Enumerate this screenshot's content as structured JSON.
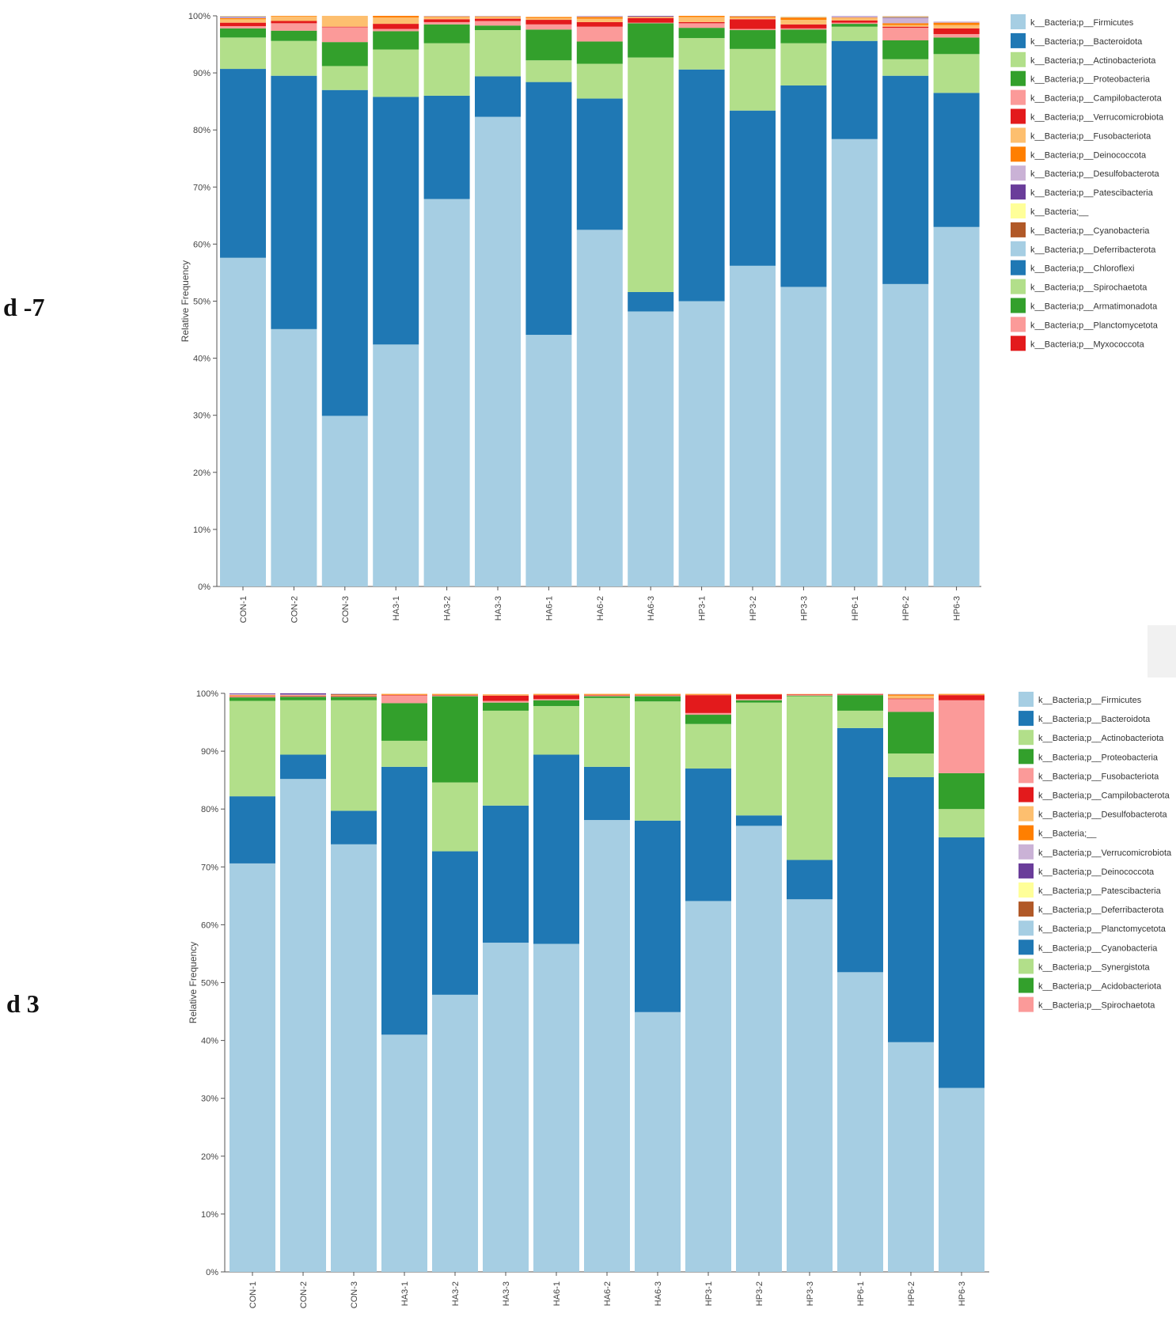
{
  "panels": {
    "top_label": "d -7",
    "bottom_label": "d 3"
  },
  "chart_data": [
    {
      "type": "bar",
      "stacked": true,
      "panel": "d -7",
      "ylabel": "Relative Frequency",
      "ylim": [
        0,
        100
      ],
      "yticks": [
        "0%",
        "10%",
        "20%",
        "30%",
        "40%",
        "50%",
        "60%",
        "70%",
        "80%",
        "90%",
        "100%"
      ],
      "legend_position": "right",
      "categories": [
        "CON-1",
        "CON-2",
        "CON-3",
        "HA3-1",
        "HA3-2",
        "HA3-3",
        "HA6-1",
        "HA6-2",
        "HA6-3",
        "HP3-1",
        "HP3-2",
        "HP3-3",
        "HP6-1",
        "HP6-2",
        "HP6-3"
      ],
      "series": [
        {
          "name": "k__Bacteria;p__Firmicutes",
          "color": "#a6cee3",
          "values": [
            57.6,
            45.1,
            29.9,
            42.4,
            67.9,
            82.3,
            44.1,
            62.5,
            48.2,
            50.0,
            56.2,
            52.5,
            78.4,
            53.0,
            63.0
          ]
        },
        {
          "name": "k__Bacteria;p__Bacteroidota",
          "color": "#1f78b4",
          "values": [
            33.1,
            44.4,
            57.1,
            43.4,
            18.1,
            7.1,
            44.3,
            23.0,
            3.4,
            40.6,
            27.2,
            35.3,
            17.2,
            36.5,
            23.5
          ]
        },
        {
          "name": "k__Bacteria;p__Actinobacteriota",
          "color": "#b2df8a",
          "values": [
            5.5,
            6.1,
            4.2,
            8.3,
            9.2,
            8.1,
            3.8,
            6.1,
            41.1,
            5.5,
            10.8,
            7.4,
            2.5,
            2.9,
            6.8
          ]
        },
        {
          "name": "k__Bacteria;p__Proteobacteria",
          "color": "#33a02c",
          "values": [
            1.6,
            1.8,
            4.2,
            3.2,
            3.3,
            0.8,
            5.4,
            3.9,
            6.0,
            1.8,
            3.3,
            2.4,
            0.5,
            3.3,
            2.9
          ]
        },
        {
          "name": "k__Bacteria;p__Campilobacterota",
          "color": "#fb9a99",
          "values": [
            0.4,
            1.3,
            2.6,
            0.4,
            0.4,
            0.8,
            0.9,
            2.6,
            0.1,
            0.8,
            0.2,
            0.2,
            0.2,
            2.2,
            0.6
          ]
        },
        {
          "name": "k__Bacteria;p__Verrucomicrobiota",
          "color": "#e31a1c",
          "values": [
            0.6,
            0.4,
            0.1,
            0.9,
            0.5,
            0.4,
            0.8,
            0.8,
            0.8,
            0.2,
            1.7,
            0.7,
            0.4,
            0.2,
            1.0
          ]
        },
        {
          "name": "k__Bacteria;p__Fusobacteriota",
          "color": "#fdbf6f",
          "values": [
            0.6,
            0.8,
            1.9,
            1.1,
            0.4,
            0.3,
            0.3,
            0.6,
            0.1,
            0.9,
            0.3,
            0.8,
            0.4,
            0.3,
            0.6
          ]
        },
        {
          "name": "k__Bacteria;p__Deinococcota",
          "color": "#ff7f00",
          "values": [
            0.2,
            0.1,
            0.0,
            0.3,
            0.1,
            0.1,
            0.2,
            0.3,
            0.1,
            0.2,
            0.2,
            0.4,
            0.1,
            0.3,
            0.4
          ]
        },
        {
          "name": "k__Bacteria;p__Desulfobacterota",
          "color": "#cab2d6",
          "values": [
            0.2,
            0.0,
            0.0,
            0.0,
            0.1,
            0.1,
            0.0,
            0.2,
            0.1,
            0.0,
            0.1,
            0.1,
            0.3,
            0.9,
            0.2
          ]
        },
        {
          "name": "k__Bacteria;p__Patescibacteria",
          "color": "#6a3d9a",
          "values": [
            0.1,
            0.0,
            0.0,
            0.0,
            0.0,
            0.0,
            0.0,
            0.0,
            0.1,
            0.0,
            0.0,
            0.0,
            0.0,
            0.1,
            0.0
          ]
        },
        {
          "name": "k__Bacteria;__",
          "color": "#ffff99",
          "values": [
            0.1,
            0.0,
            0.0,
            0.0,
            0.0,
            0.0,
            0.0,
            0.0,
            0.0,
            0.0,
            0.0,
            0.1,
            0.0,
            0.1,
            0.0
          ]
        },
        {
          "name": "k__Bacteria;p__Cyanobacteria",
          "color": "#b15928",
          "values": [
            0.0,
            0.0,
            0.0,
            0.0,
            0.0,
            0.0,
            0.0,
            0.0,
            0.0,
            0.0,
            0.0,
            0.0,
            0.0,
            0.1,
            0.0
          ]
        },
        {
          "name": "k__Bacteria;p__Deferribacterota",
          "color": "#a6cee3",
          "values": [
            0,
            0,
            0,
            0,
            0,
            0,
            0,
            0,
            0,
            0,
            0,
            0,
            0,
            0,
            0
          ]
        },
        {
          "name": "k__Bacteria;p__Chloroflexi",
          "color": "#1f78b4",
          "values": [
            0,
            0,
            0,
            0,
            0,
            0,
            0,
            0,
            0,
            0,
            0,
            0,
            0,
            0,
            0
          ]
        },
        {
          "name": "k__Bacteria;p__Spirochaetota",
          "color": "#b2df8a",
          "values": [
            0,
            0,
            0,
            0,
            0,
            0,
            0,
            0,
            0,
            0,
            0,
            0,
            0,
            0,
            0
          ]
        },
        {
          "name": "k__Bacteria;p__Armatimonadota",
          "color": "#33a02c",
          "values": [
            0,
            0,
            0,
            0,
            0,
            0,
            0,
            0,
            0,
            0,
            0,
            0,
            0,
            0,
            0
          ]
        },
        {
          "name": "k__Bacteria;p__Planctomycetota",
          "color": "#fb9a99",
          "values": [
            0,
            0,
            0,
            0,
            0,
            0,
            0,
            0,
            0,
            0,
            0,
            0,
            0,
            0,
            0
          ]
        },
        {
          "name": "k__Bacteria;p__Myxococcota",
          "color": "#e31a1c",
          "values": [
            0,
            0,
            0,
            0,
            0,
            0,
            0,
            0,
            0,
            0,
            0,
            0,
            0,
            0,
            0
          ]
        }
      ]
    },
    {
      "type": "bar",
      "stacked": true,
      "panel": "d 3",
      "ylabel": "Relative Frequency",
      "ylim": [
        0,
        100
      ],
      "yticks": [
        "0%",
        "10%",
        "20%",
        "30%",
        "40%",
        "50%",
        "60%",
        "70%",
        "80%",
        "90%",
        "100%"
      ],
      "legend_position": "right",
      "categories": [
        "CON-1",
        "CON-2",
        "CON-3",
        "HA3-1",
        "HA3-2",
        "HA3-3",
        "HA6-1",
        "HA6-2",
        "HA6-3",
        "HP3-1",
        "HP3-2",
        "HP3-3",
        "HP6-1",
        "HP6-2",
        "HP6-3"
      ],
      "series": [
        {
          "name": "k__Bacteria;p__Firmicutes",
          "color": "#a6cee3",
          "values": [
            70.6,
            85.2,
            73.9,
            41.0,
            47.9,
            56.9,
            56.7,
            78.1,
            44.9,
            64.1,
            77.1,
            64.4,
            51.8,
            39.7,
            31.8
          ]
        },
        {
          "name": "k__Bacteria;p__Bacteroidota",
          "color": "#1f78b4",
          "values": [
            11.6,
            4.2,
            5.8,
            46.3,
            24.8,
            23.7,
            32.7,
            9.2,
            33.1,
            22.9,
            1.8,
            6.8,
            42.2,
            45.8,
            43.3
          ]
        },
        {
          "name": "k__Bacteria;p__Actinobacteriota",
          "color": "#b2df8a",
          "values": [
            16.5,
            9.4,
            19.1,
            4.5,
            11.9,
            16.4,
            8.4,
            11.9,
            20.6,
            7.7,
            19.5,
            28.3,
            3.0,
            4.1,
            4.9
          ]
        },
        {
          "name": "k__Bacteria;p__Proteobacteria",
          "color": "#33a02c",
          "values": [
            0.6,
            0.6,
            0.6,
            6.5,
            14.9,
            1.4,
            1.0,
            0.3,
            0.9,
            1.6,
            0.4,
            0.1,
            2.7,
            7.2,
            6.2
          ]
        },
        {
          "name": "k__Bacteria;p__Fusobacteriota",
          "color": "#fb9a99",
          "values": [
            0.1,
            0.1,
            0.1,
            1.3,
            0.1,
            0.3,
            0.2,
            0.1,
            0.1,
            0.3,
            0.2,
            0.1,
            0.1,
            2.2,
            12.6
          ]
        },
        {
          "name": "k__Bacteria;p__Campilobacterota",
          "color": "#e31a1c",
          "values": [
            0.1,
            0.1,
            0.1,
            0.1,
            0.1,
            0.9,
            0.7,
            0.1,
            0.1,
            3.1,
            0.8,
            0.1,
            0.1,
            0.1,
            0.9
          ]
        },
        {
          "name": "k__Bacteria;p__Desulfobacterota",
          "color": "#fdbf6f",
          "values": [
            0.1,
            0.1,
            0.1,
            0.1,
            0.1,
            0.1,
            0.1,
            0.1,
            0.1,
            0.1,
            0.1,
            0.1,
            0.0,
            0.5,
            0.1
          ]
        },
        {
          "name": "k__Bacteria;__",
          "color": "#ff7f00",
          "values": [
            0.1,
            0.0,
            0.1,
            0.1,
            0.1,
            0.1,
            0.1,
            0.1,
            0.1,
            0.1,
            0.0,
            0.0,
            0.0,
            0.2,
            0.1
          ]
        },
        {
          "name": "k__Bacteria;p__Verrucomicrobiota",
          "color": "#cab2d6",
          "values": [
            0.2,
            0.1,
            0.0,
            0.0,
            0.0,
            0.0,
            0.0,
            0.0,
            0.0,
            0.0,
            0.0,
            0.0,
            0.0,
            0.1,
            0.0
          ]
        },
        {
          "name": "k__Bacteria;p__Deinococcota",
          "color": "#6a3d9a",
          "values": [
            0.1,
            0.2,
            0.1,
            0.0,
            0.0,
            0.0,
            0.0,
            0.0,
            0.0,
            0.0,
            0.0,
            0.0,
            0.0,
            0.0,
            0.0
          ]
        },
        {
          "name": "k__Bacteria;p__Patescibacteria",
          "color": "#ffff99",
          "values": [
            0,
            0,
            0,
            0,
            0,
            0,
            0,
            0,
            0,
            0,
            0,
            0,
            0,
            0,
            0
          ]
        },
        {
          "name": "k__Bacteria;p__Deferribacterota",
          "color": "#b15928",
          "values": [
            0,
            0,
            0,
            0,
            0,
            0,
            0,
            0,
            0,
            0,
            0,
            0,
            0,
            0,
            0
          ]
        },
        {
          "name": "k__Bacteria;p__Planctomycetota",
          "color": "#a6cee3",
          "values": [
            0,
            0,
            0,
            0,
            0,
            0,
            0,
            0,
            0,
            0,
            0,
            0,
            0,
            0,
            0
          ]
        },
        {
          "name": "k__Bacteria;p__Cyanobacteria",
          "color": "#1f78b4",
          "values": [
            0,
            0,
            0,
            0,
            0,
            0,
            0,
            0,
            0,
            0,
            0,
            0,
            0,
            0,
            0
          ]
        },
        {
          "name": "k__Bacteria;p__Synergistota",
          "color": "#b2df8a",
          "values": [
            0,
            0,
            0,
            0,
            0,
            0,
            0,
            0,
            0,
            0,
            0,
            0,
            0,
            0,
            0
          ]
        },
        {
          "name": "k__Bacteria;p__Acidobacteriota",
          "color": "#33a02c",
          "values": [
            0,
            0,
            0,
            0,
            0,
            0,
            0,
            0,
            0,
            0,
            0,
            0,
            0,
            0,
            0
          ]
        },
        {
          "name": "k__Bacteria;p__Spirochaetota",
          "color": "#fb9a99",
          "values": [
            0,
            0,
            0,
            0,
            0,
            0,
            0,
            0,
            0,
            0,
            0,
            0,
            0,
            0,
            0
          ]
        }
      ]
    }
  ]
}
